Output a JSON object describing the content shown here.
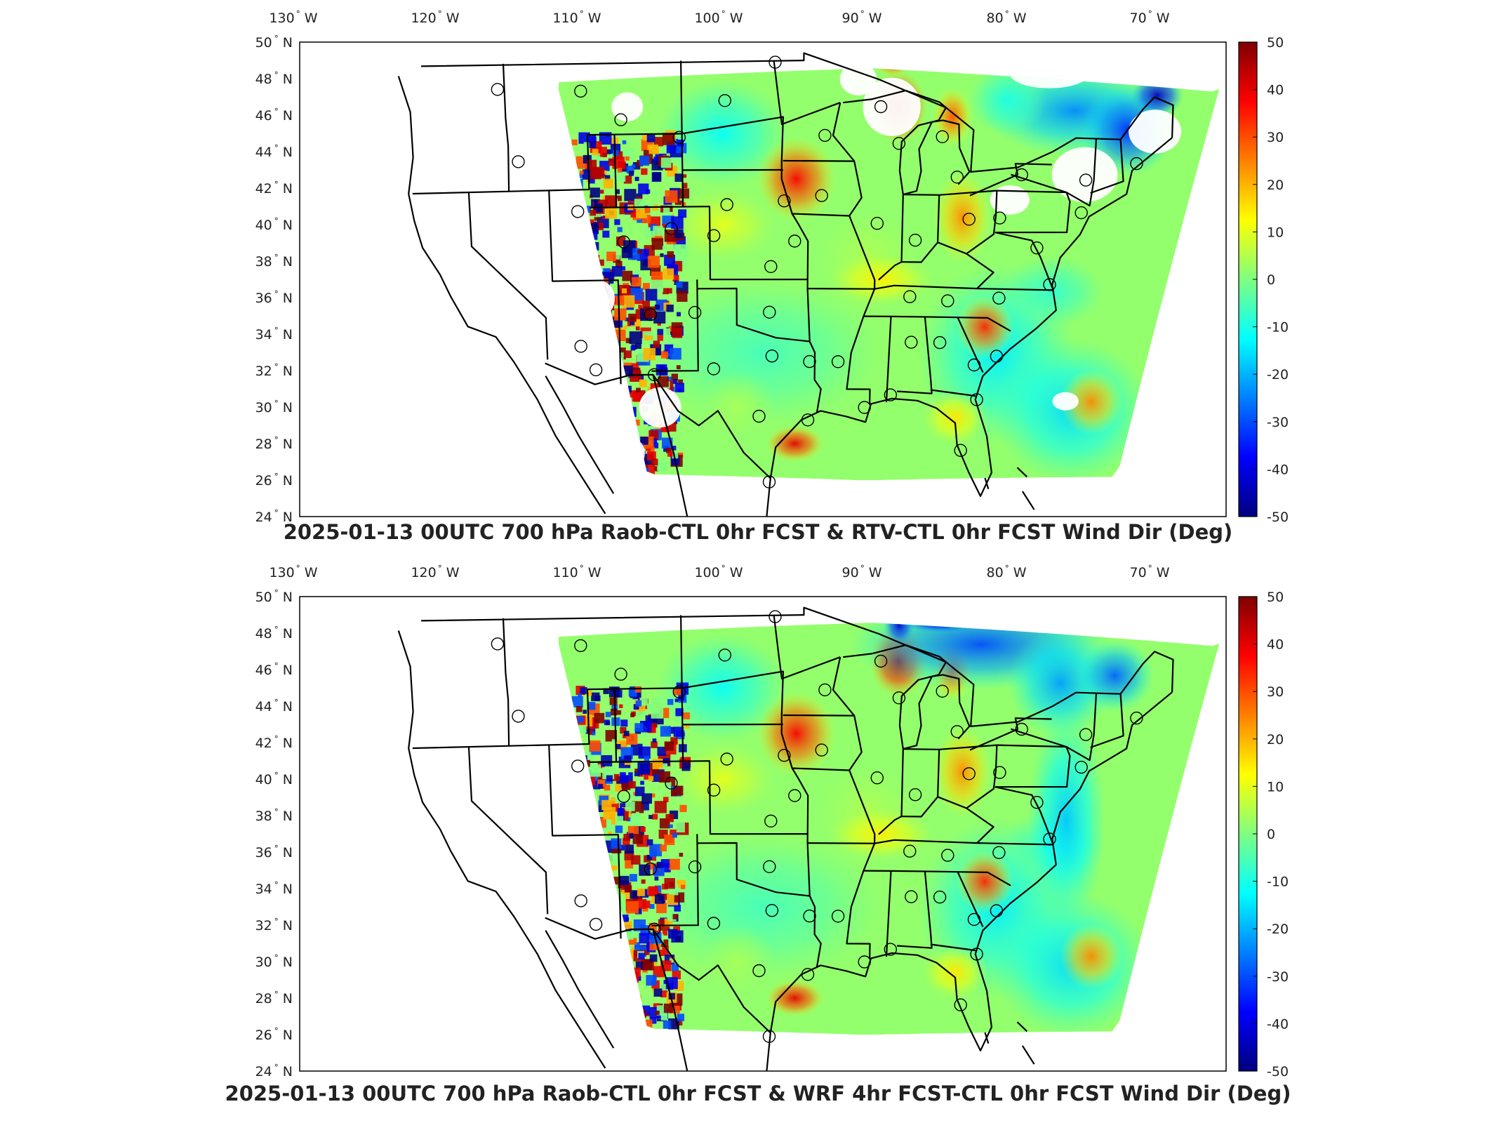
{
  "figure": {
    "panels": [
      {
        "title": "2025-01-13 00UTC 700 hPa Raob-CTL 0hr FCST & RTV-CTL 0hr FCST Wind Dir (Deg)",
        "longitude_labels": [
          "130",
          "120",
          "110",
          "100",
          "90",
          "80",
          "70"
        ],
        "longitude_unit": "W",
        "latitude_labels": [
          "50",
          "48",
          "46",
          "44",
          "42",
          "40",
          "38",
          "36",
          "34",
          "32",
          "30",
          "28",
          "26",
          "24"
        ],
        "latitude_unit": "N",
        "colorbar": {
          "ticks": [
            "50",
            "40",
            "30",
            "20",
            "10",
            "0",
            "-10",
            "-20",
            "-30",
            "-40",
            "-50"
          ]
        },
        "features": [
          "warm-anomaly-upper-midwest",
          "cold-anomaly-northeast",
          "noisy-rockies-field"
        ]
      },
      {
        "title": "2025-01-13 00UTC 700 hPa Raob-CTL 0hr FCST & WRF 4hr FCST-CTL 0hr FCST Wind Dir (Deg)",
        "longitude_labels": [
          "130",
          "120",
          "110",
          "100",
          "90",
          "80",
          "70"
        ],
        "longitude_unit": "W",
        "latitude_labels": [
          "50",
          "48",
          "46",
          "44",
          "42",
          "40",
          "38",
          "36",
          "34",
          "32",
          "30",
          "28",
          "26",
          "24"
        ],
        "latitude_unit": "N",
        "colorbar": {
          "ticks": [
            "50",
            "40",
            "30",
            "20",
            "10",
            "0",
            "-10",
            "-20",
            "-30",
            "-40",
            "-50"
          ]
        },
        "features": [
          "warm-anomaly-upper-midwest",
          "cold-anomaly-north",
          "noisy-rockies-field"
        ]
      }
    ],
    "degree_symbol": "°",
    "colormap": [
      "#7f0000",
      "#ff0000",
      "#ff8000",
      "#ffff00",
      "#80ff80",
      "#00ffff",
      "#0080ff",
      "#0000ff",
      "#00007f"
    ],
    "colors": {
      "land_outline": "#000000",
      "axis": "#000000",
      "station_marker": "#000000",
      "missing": "#ffffff"
    }
  }
}
